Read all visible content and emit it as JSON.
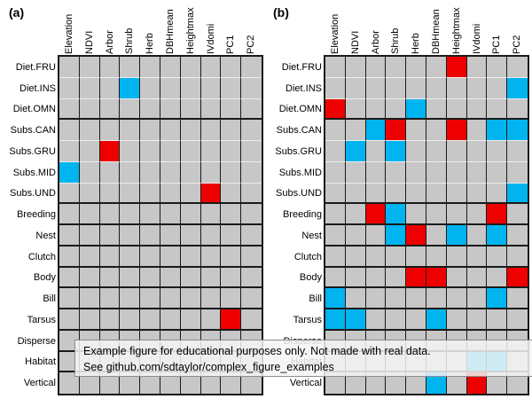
{
  "figure": {
    "overlay": {
      "line1": "Example figure for educational purposes only. Not made with real data.",
      "line2": "See github.com/sdtaylor/complex_figure_examples"
    },
    "colors": {
      "cell_bg": "#c7c7c7",
      "red": "#ee0000",
      "cyan": "#00b4f0",
      "grid_line": "#1a1a1a",
      "thin_line": "#ededed"
    }
  },
  "chart_data": [
    {
      "type": "heatmap",
      "panel_label": "(a)",
      "columns": [
        "Elevation",
        "NDVI",
        "Arbor",
        "Shrub",
        "Herb",
        "DBHmean",
        "Heightmax",
        "IVdomi",
        "PC1",
        "PC2"
      ],
      "rows": [
        "Diet.FRU",
        "Diet.INS",
        "Diet.OMN",
        "Subs.CAN",
        "Subs.GRU",
        "Subs.MID",
        "Subs.UND",
        "Breeding",
        "Nest",
        "Clutch",
        "Body",
        "Bill",
        "Tarsus",
        "Disperse",
        "Habitat",
        "Vertical"
      ],
      "row_groups": [
        3,
        4,
        1,
        1,
        1,
        1,
        1,
        1,
        1,
        1,
        1
      ],
      "cells": [
        {
          "row": "Diet.INS",
          "col": "Shrub",
          "color": "cyan"
        },
        {
          "row": "Subs.GRU",
          "col": "Arbor",
          "color": "red"
        },
        {
          "row": "Subs.MID",
          "col": "Elevation",
          "color": "cyan"
        },
        {
          "row": "Subs.UND",
          "col": "IVdomi",
          "color": "red"
        },
        {
          "row": "Tarsus",
          "col": "PC1",
          "color": "red"
        }
      ]
    },
    {
      "type": "heatmap",
      "panel_label": "(b)",
      "columns": [
        "Elevation",
        "NDVI",
        "Arbor",
        "Shrub",
        "Herb",
        "DBHmean",
        "Heightmax",
        "IVdomi",
        "PC1",
        "PC2"
      ],
      "rows": [
        "Diet.FRU",
        "Diet.INS",
        "Diet.OMN",
        "Subs.CAN",
        "Subs.GRU",
        "Subs.MID",
        "Subs.UND",
        "Breeding",
        "Nest",
        "Clutch",
        "Body",
        "Bill",
        "Tarsus",
        "Disperse",
        "Habitat",
        "Vertical"
      ],
      "row_groups": [
        3,
        4,
        1,
        1,
        1,
        1,
        1,
        1,
        1,
        1,
        1
      ],
      "cells": [
        {
          "row": "Diet.FRU",
          "col": "Heightmax",
          "color": "red"
        },
        {
          "row": "Diet.INS",
          "col": "PC2",
          "color": "cyan"
        },
        {
          "row": "Diet.OMN",
          "col": "Elevation",
          "color": "red"
        },
        {
          "row": "Diet.OMN",
          "col": "Herb",
          "color": "cyan"
        },
        {
          "row": "Subs.CAN",
          "col": "Arbor",
          "color": "cyan"
        },
        {
          "row": "Subs.CAN",
          "col": "Shrub",
          "color": "red"
        },
        {
          "row": "Subs.CAN",
          "col": "Heightmax",
          "color": "red"
        },
        {
          "row": "Subs.CAN",
          "col": "PC1",
          "color": "cyan"
        },
        {
          "row": "Subs.CAN",
          "col": "PC2",
          "color": "cyan"
        },
        {
          "row": "Subs.GRU",
          "col": "NDVI",
          "color": "cyan"
        },
        {
          "row": "Subs.GRU",
          "col": "Shrub",
          "color": "cyan"
        },
        {
          "row": "Subs.UND",
          "col": "PC2",
          "color": "cyan"
        },
        {
          "row": "Breeding",
          "col": "Arbor",
          "color": "red"
        },
        {
          "row": "Breeding",
          "col": "Shrub",
          "color": "cyan"
        },
        {
          "row": "Breeding",
          "col": "PC1",
          "color": "red"
        },
        {
          "row": "Nest",
          "col": "Shrub",
          "color": "cyan"
        },
        {
          "row": "Nest",
          "col": "Herb",
          "color": "red"
        },
        {
          "row": "Nest",
          "col": "Heightmax",
          "color": "cyan"
        },
        {
          "row": "Nest",
          "col": "PC1",
          "color": "cyan"
        },
        {
          "row": "Body",
          "col": "Herb",
          "color": "red"
        },
        {
          "row": "Body",
          "col": "DBHmean",
          "color": "red"
        },
        {
          "row": "Body",
          "col": "PC2",
          "color": "red"
        },
        {
          "row": "Bill",
          "col": "Elevation",
          "color": "cyan"
        },
        {
          "row": "Bill",
          "col": "PC1",
          "color": "cyan"
        },
        {
          "row": "Tarsus",
          "col": "Elevation",
          "color": "cyan"
        },
        {
          "row": "Tarsus",
          "col": "NDVI",
          "color": "cyan"
        },
        {
          "row": "Tarsus",
          "col": "DBHmean",
          "color": "cyan"
        },
        {
          "row": "Habitat",
          "col": "IVdomi",
          "color": "cyan"
        },
        {
          "row": "Habitat",
          "col": "PC1",
          "color": "cyan"
        },
        {
          "row": "Vertical",
          "col": "DBHmean",
          "color": "cyan"
        },
        {
          "row": "Vertical",
          "col": "IVdomi",
          "color": "red"
        }
      ]
    }
  ]
}
